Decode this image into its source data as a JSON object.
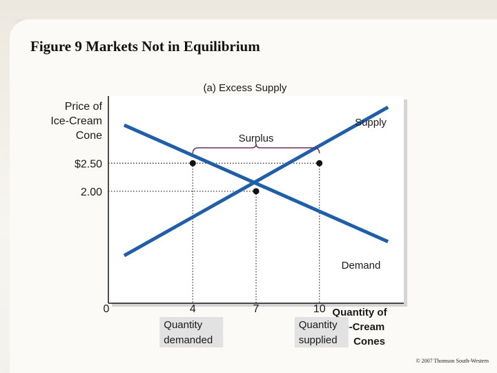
{
  "title": "Figure 9 Markets Not in Equilibrium",
  "copyright": "© 2007 Thomson South-Western",
  "chart_data": {
    "type": "line",
    "subtitle": "(a) Excess Supply",
    "ylabel": [
      "Price of",
      "Ice-Cream",
      "Cone"
    ],
    "xlabel": [
      "Quantity of",
      "Ice-Cream",
      "Cones"
    ],
    "xlim": [
      0,
      14
    ],
    "ylim": [
      0,
      3.7
    ],
    "y_ticks": [
      {
        "value": 2.5,
        "label": "$2.50"
      },
      {
        "value": 2.0,
        "label": "2.00"
      }
    ],
    "x_ticks": [
      {
        "value": 0,
        "label": "0"
      },
      {
        "value": 4,
        "label": "4"
      },
      {
        "value": 7,
        "label": "7"
      },
      {
        "value": 10,
        "label": "10"
      }
    ],
    "series": [
      {
        "name": "Supply",
        "points": [
          [
            0.75,
            0.85
          ],
          [
            13.25,
            3.5
          ]
        ],
        "color": "#1f5ea8"
      },
      {
        "name": "Demand",
        "points": [
          [
            0.75,
            3.18
          ],
          [
            13.25,
            1.1
          ]
        ],
        "color": "#1f5ea8"
      }
    ],
    "points": [
      {
        "x": 4,
        "y": 2.5
      },
      {
        "x": 10,
        "y": 2.5
      },
      {
        "x": 7,
        "y": 2.0
      }
    ],
    "annotations": {
      "surplus": {
        "label": "Surplus",
        "from": 4,
        "to": 10
      },
      "quantity_demanded": {
        "label": [
          "Quantity",
          "demanded"
        ],
        "x": 4
      },
      "quantity_supplied": {
        "label": [
          "Quantity",
          "supplied"
        ],
        "x": 10
      }
    }
  }
}
